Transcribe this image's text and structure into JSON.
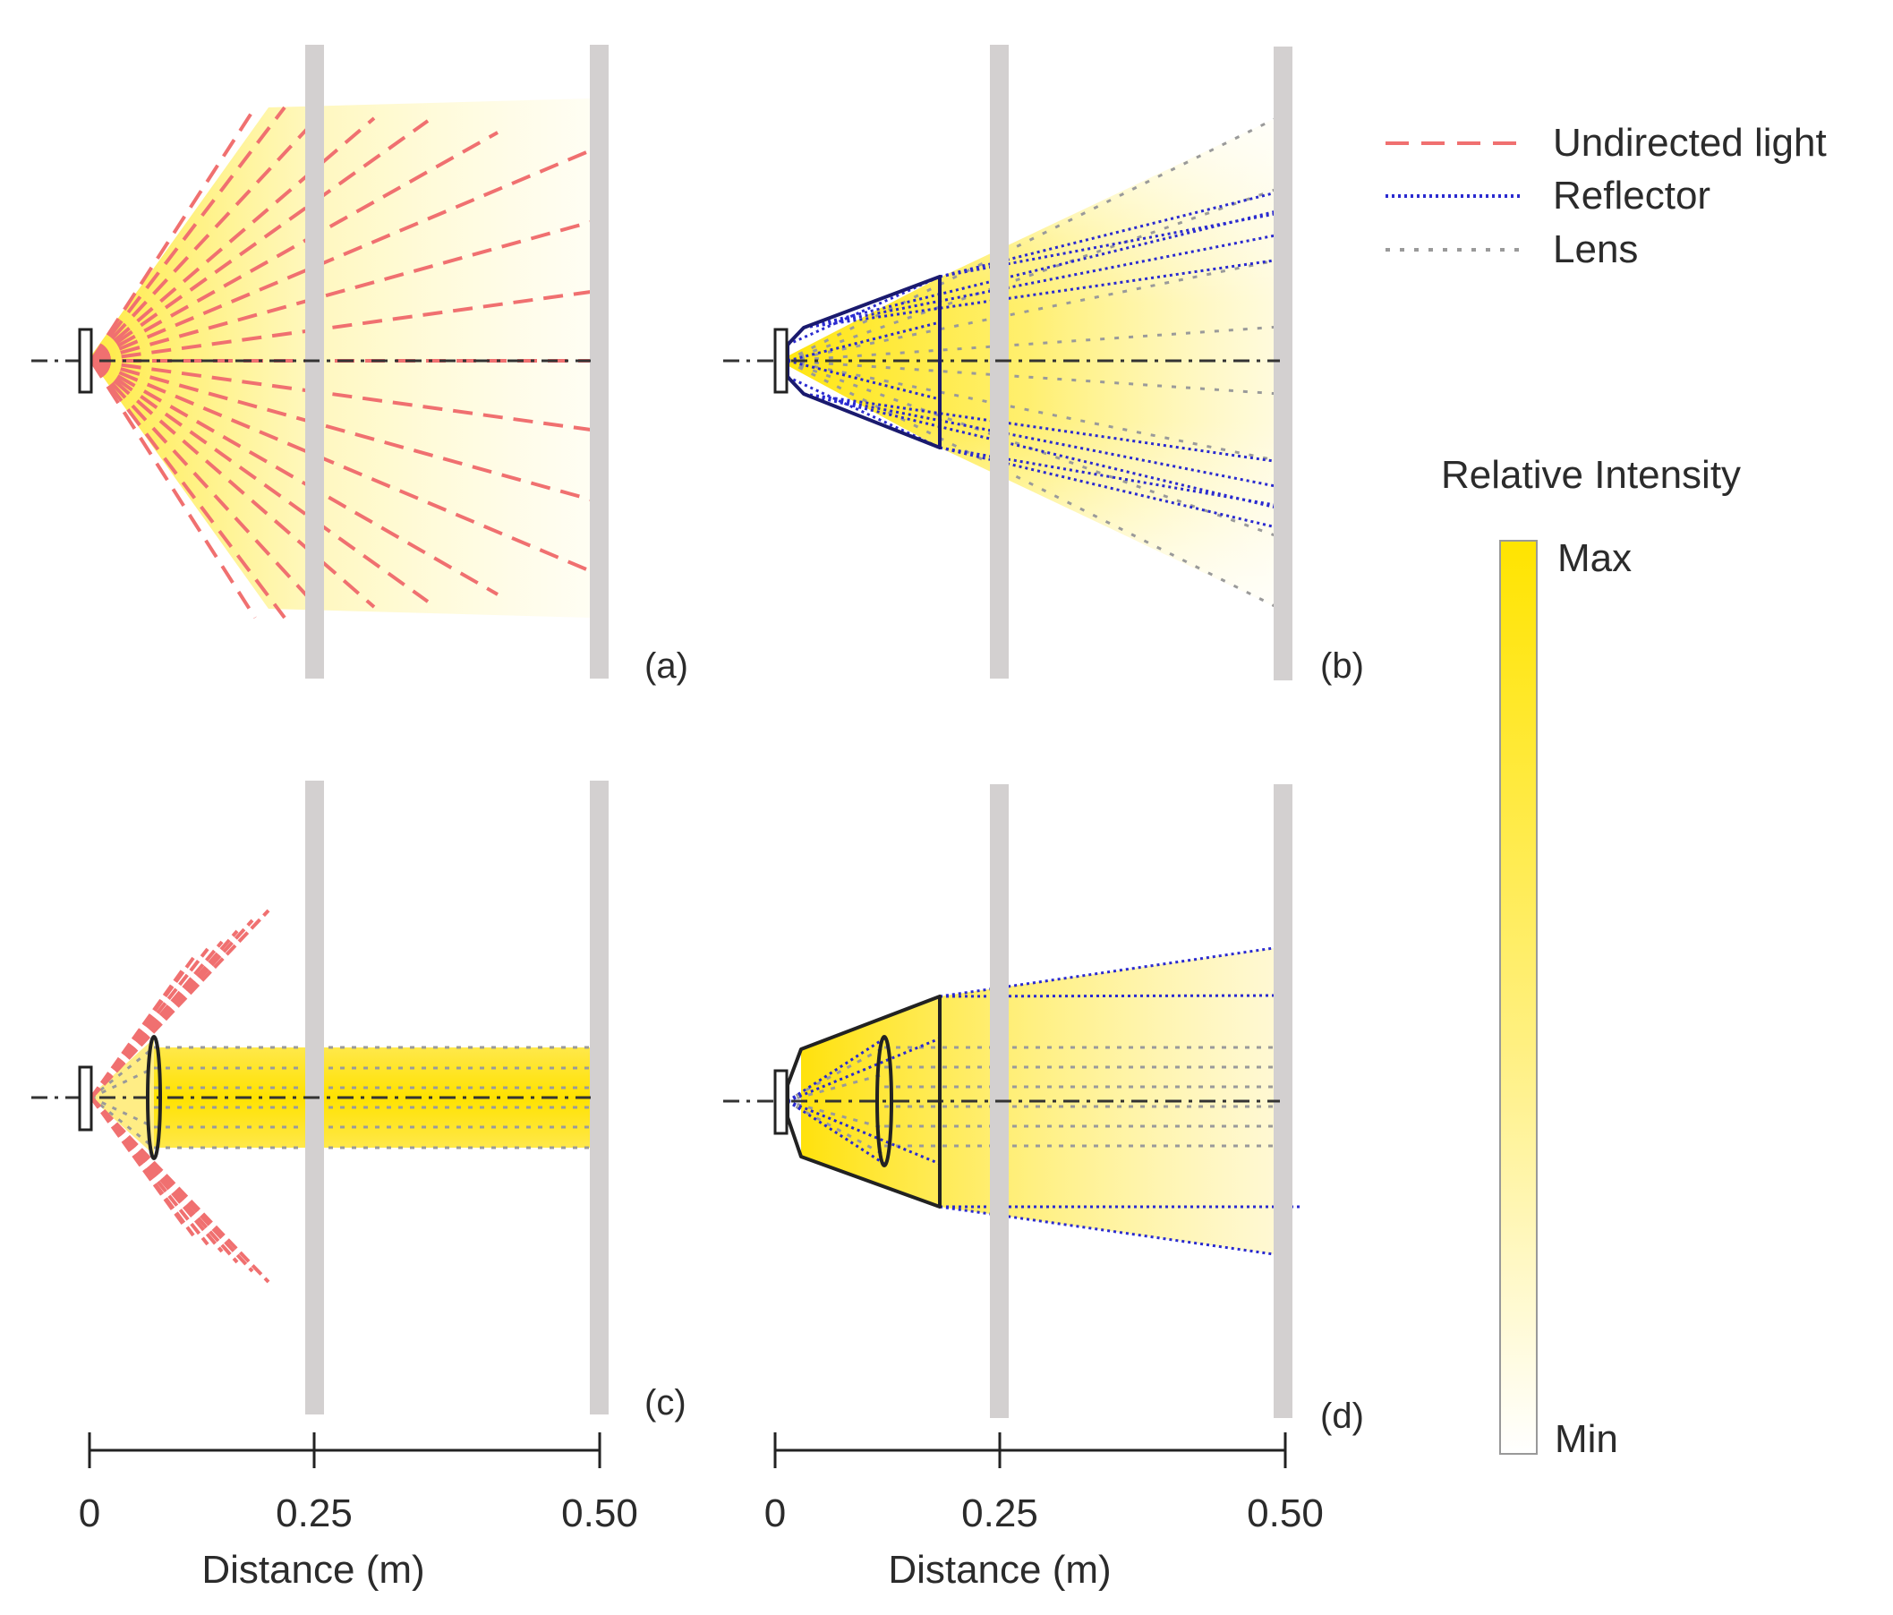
{
  "figure": {
    "panels": [
      {
        "id": "a",
        "label": "(a)",
        "configuration": "Undirected light",
        "elements": [
          "led"
        ]
      },
      {
        "id": "b",
        "label": "(b)",
        "configuration": "Reflector",
        "elements": [
          "led",
          "reflector"
        ]
      },
      {
        "id": "c",
        "label": "(c)",
        "configuration": "Lens",
        "elements": [
          "led",
          "lens"
        ]
      },
      {
        "id": "d",
        "label": "(d)",
        "configuration": "Reflector + Lens",
        "elements": [
          "led",
          "reflector",
          "lens"
        ]
      }
    ],
    "legend": {
      "undirected": "Undirected light",
      "reflector": "Reflector",
      "lens": "Lens"
    },
    "colorbar": {
      "title": "Relative Intensity",
      "max_label": "Max",
      "min_label": "Min",
      "max_color": "#FFE400",
      "min_color": "#FFFFFF"
    },
    "axes": [
      {
        "ticks": [
          "0",
          "0.25",
          "0.50"
        ],
        "label": "Distance (m)"
      },
      {
        "ticks": [
          "0",
          "0.25",
          "0.50"
        ],
        "label": "Distance (m)"
      }
    ],
    "colors": {
      "undirected": "#F07070",
      "reflector": "#2A2AD0",
      "lens": "#9A9A9A",
      "screen": "#D3D0D0",
      "axis_line": "#222222"
    }
  }
}
